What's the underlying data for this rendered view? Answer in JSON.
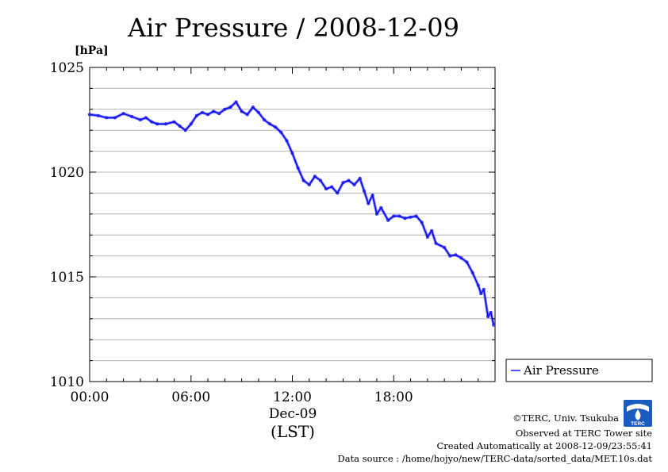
{
  "chart_data": {
    "type": "line",
    "title": "Air Pressure / 2008-12-09",
    "ylabel": "[hPa]",
    "xlabel": "(LST)",
    "x_date_label": "Dec-09",
    "ylim": [
      1010,
      1025
    ],
    "xlim": [
      "00:00",
      "24:00"
    ],
    "y_ticks": [
      "1010",
      "1015",
      "1020",
      "1025"
    ],
    "x_ticks": [
      "00:00",
      "06:00",
      "12:00",
      "18:00"
    ],
    "grid": true,
    "legend_position": "right",
    "series": [
      {
        "name": "Air Pressure",
        "color": "#1a1aff",
        "points": [
          [
            "00:00",
            1022.75
          ],
          [
            "00:30",
            1022.7
          ],
          [
            "01:00",
            1022.6
          ],
          [
            "01:30",
            1022.6
          ],
          [
            "02:00",
            1022.8
          ],
          [
            "02:30",
            1022.65
          ],
          [
            "03:00",
            1022.5
          ],
          [
            "03:20",
            1022.6
          ],
          [
            "03:40",
            1022.4
          ],
          [
            "04:00",
            1022.3
          ],
          [
            "04:30",
            1022.3
          ],
          [
            "05:00",
            1022.4
          ],
          [
            "05:20",
            1022.2
          ],
          [
            "05:40",
            1022.0
          ],
          [
            "06:00",
            1022.3
          ],
          [
            "06:20",
            1022.7
          ],
          [
            "06:40",
            1022.85
          ],
          [
            "07:00",
            1022.75
          ],
          [
            "07:20",
            1022.9
          ],
          [
            "07:40",
            1022.8
          ],
          [
            "08:00",
            1023.0
          ],
          [
            "08:20",
            1023.1
          ],
          [
            "08:40",
            1023.35
          ],
          [
            "09:00",
            1022.9
          ],
          [
            "09:20",
            1022.75
          ],
          [
            "09:40",
            1023.1
          ],
          [
            "10:00",
            1022.85
          ],
          [
            "10:20",
            1022.5
          ],
          [
            "10:40",
            1022.3
          ],
          [
            "11:00",
            1022.15
          ],
          [
            "11:20",
            1021.9
          ],
          [
            "11:40",
            1021.5
          ],
          [
            "12:00",
            1020.9
          ],
          [
            "12:20",
            1020.2
          ],
          [
            "12:40",
            1019.6
          ],
          [
            "13:00",
            1019.4
          ],
          [
            "13:20",
            1019.8
          ],
          [
            "13:40",
            1019.6
          ],
          [
            "14:00",
            1019.2
          ],
          [
            "14:20",
            1019.3
          ],
          [
            "14:40",
            1019.0
          ],
          [
            "15:00",
            1019.5
          ],
          [
            "15:20",
            1019.6
          ],
          [
            "15:40",
            1019.4
          ],
          [
            "16:00",
            1019.7
          ],
          [
            "16:15",
            1019.1
          ],
          [
            "16:30",
            1018.5
          ],
          [
            "16:45",
            1018.9
          ],
          [
            "17:00",
            1018.0
          ],
          [
            "17:15",
            1018.3
          ],
          [
            "17:40",
            1017.7
          ],
          [
            "18:00",
            1017.9
          ],
          [
            "18:20",
            1017.9
          ],
          [
            "18:40",
            1017.8
          ],
          [
            "19:00",
            1017.85
          ],
          [
            "19:20",
            1017.9
          ],
          [
            "19:40",
            1017.6
          ],
          [
            "20:00",
            1016.9
          ],
          [
            "20:15",
            1017.2
          ],
          [
            "20:30",
            1016.6
          ],
          [
            "21:00",
            1016.4
          ],
          [
            "21:20",
            1016.0
          ],
          [
            "21:40",
            1016.05
          ],
          [
            "22:00",
            1015.9
          ],
          [
            "22:20",
            1015.7
          ],
          [
            "22:40",
            1015.2
          ],
          [
            "23:00",
            1014.6
          ],
          [
            "23:10",
            1014.2
          ],
          [
            "23:20",
            1014.4
          ],
          [
            "23:35",
            1013.1
          ],
          [
            "23:45",
            1013.3
          ],
          [
            "23:55",
            1012.7
          ]
        ]
      }
    ]
  },
  "credits": {
    "copyright": "©TERC, Univ. Tsukuba",
    "observed": "Observed at TERC Tower site",
    "created": "Created Automatically at 2008-12-09/23:55:41",
    "source": "Data source : /home/hojyo/new/TERC-data/sorted_data/MET.10s.dat"
  },
  "logo": {
    "text": "TERC"
  }
}
